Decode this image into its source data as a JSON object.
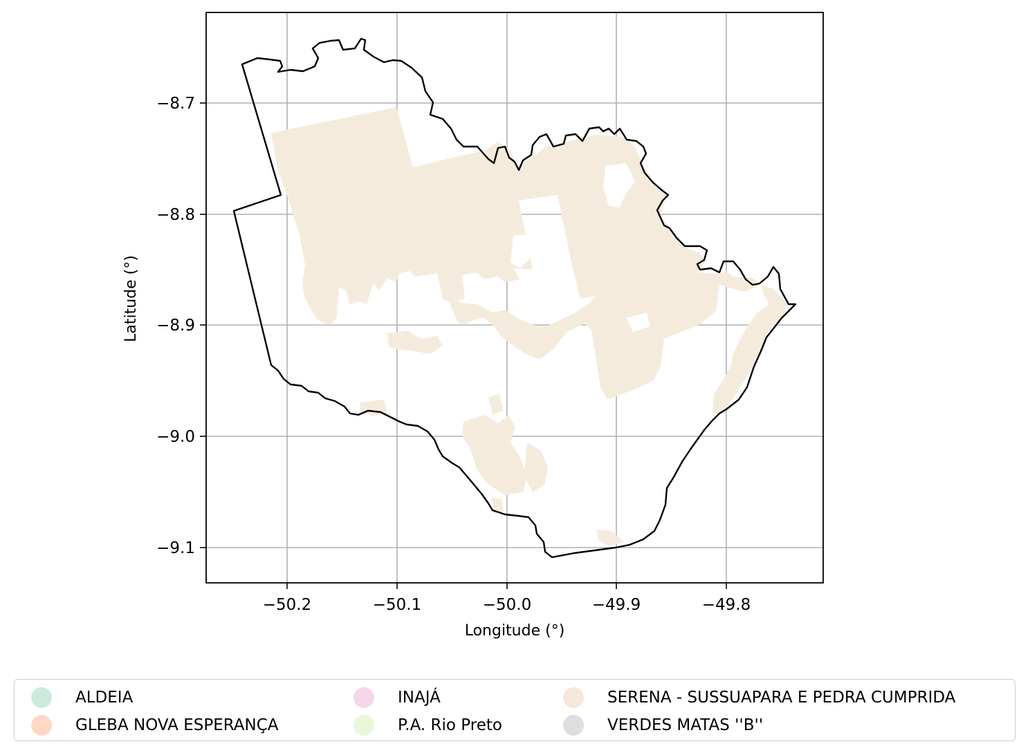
{
  "axes": {
    "xlabel": "Longitude (°)",
    "ylabel": "Latitude (°)",
    "xticks": [
      "−50.2",
      "−50.1",
      "−50.0",
      "−49.9",
      "−49.8"
    ],
    "yticks": [
      "−8.7",
      "−8.8",
      "−8.9",
      "−9.0",
      "−9.1"
    ]
  },
  "chart_data": {
    "type": "map",
    "xlabel": "Longitude (°)",
    "ylabel": "Latitude (°)",
    "xlim": [
      -50.274,
      -49.711
    ],
    "ylim": [
      -9.132,
      -8.618
    ],
    "grid": true,
    "boundary_color": "#000000",
    "fill_color": "#f5ebdd",
    "legend_position": "bottom"
  },
  "legend": {
    "items": [
      {
        "label": "ALDEIA",
        "color": "#cdeadd"
      },
      {
        "label": "GLEBA NOVA ESPERANÇA",
        "color": "#fdd8c5"
      },
      {
        "label": "INAJÁ",
        "color": "#f6d7ea"
      },
      {
        "label": "P.A. Rio Preto",
        "color": "#e9f6d7"
      },
      {
        "label": "SERENA - SUSSUAPARA E PEDRA CUMPRIDA",
        "color": "#f5e8da"
      },
      {
        "label": "VERDES MATAS ''B''",
        "color": "#dedede"
      }
    ]
  }
}
